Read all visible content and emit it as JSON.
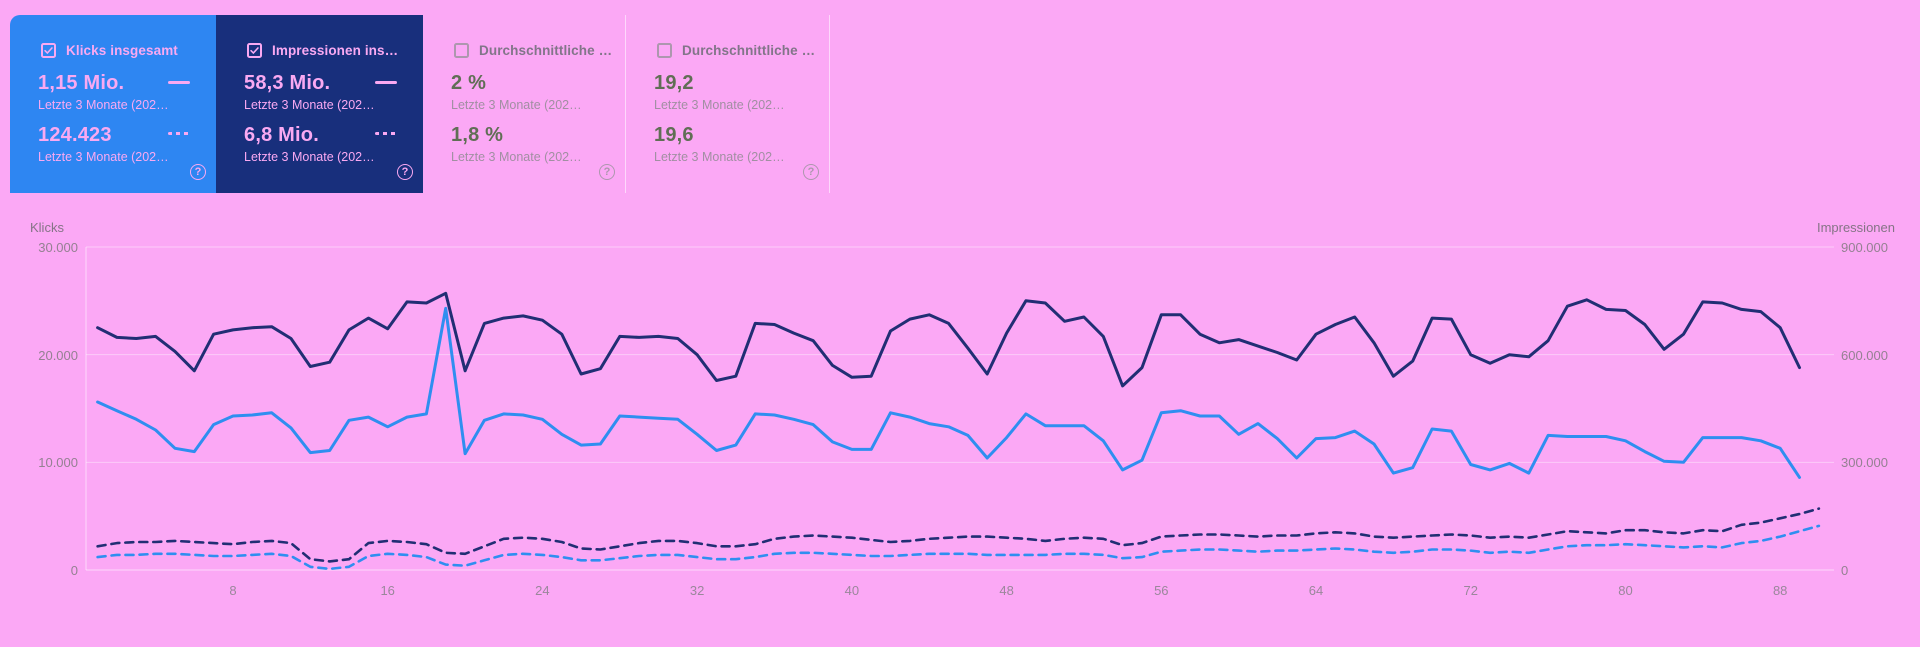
{
  "cards": [
    {
      "title": "Klicks insgesamt",
      "checked": true,
      "value1": "1,15 Mio.",
      "label1": "Letzte 3 Monate (202…",
      "value2": "124.423",
      "label2": "Letzte 3 Monate (202…",
      "help": "?",
      "bg": "#2e86f2",
      "text_color": "#f9a9f2"
    },
    {
      "title": "Impressionen ins…",
      "checked": true,
      "value1": "58,3 Mio.",
      "label1": "Letzte 3 Monate (202…",
      "value2": "6,8 Mio.",
      "label2": "Letzte 3 Monate (202…",
      "help": "?",
      "bg": "#182f7c",
      "text_color": "#f9a9f2"
    },
    {
      "title": "Durchschnittliche …",
      "checked": false,
      "value1": "2 %",
      "label1": "Letzte 3 Monate (202…",
      "value2": "1,8 %",
      "label2": "Letzte 3 Monate (202…",
      "help": "?",
      "bg": "transparent",
      "text_color": "#606e55"
    },
    {
      "title": "Durchschnittliche …",
      "checked": false,
      "value1": "19,2",
      "label1": "Letzte 3 Monate (202…",
      "value2": "19,6",
      "label2": "Letzte 3 Monate (202…",
      "help": "?",
      "bg": "transparent",
      "text_color": "#606e55"
    }
  ],
  "colors": {
    "page_background": "#fba8f5",
    "clicks_line": "#2f8ef0",
    "impressions_line": "#212e74",
    "selected_card_blue": "#2e86f2",
    "selected_card_navy": "#182f7c",
    "grid_line": "rgba(255,255,255,0.42)"
  },
  "chart_data": {
    "type": "line",
    "grid": true,
    "left_axis": {
      "label": "Klicks",
      "ticks": [
        "30.000",
        "20.000",
        "10.000",
        "0"
      ],
      "tick_values": [
        30000,
        20000,
        10000,
        0
      ],
      "max": 30000
    },
    "right_axis": {
      "label": "Impressionen",
      "ticks": [
        "900.000",
        "600.000",
        "300.000",
        "0"
      ],
      "tick_values": [
        900000,
        600000,
        300000,
        0
      ],
      "max": 900000
    },
    "x_axis": {
      "ticks": [
        8,
        16,
        24,
        32,
        40,
        48,
        56,
        64,
        72,
        80,
        88
      ],
      "unit": "Tag-Index",
      "days_current": 89,
      "days_previous": 90
    },
    "series": [
      {
        "id": "impressions-previous",
        "name": "Impressionen ins… — Letzte 3 Monate (202…",
        "axis": "right",
        "style": "dashed",
        "color": "#212e74",
        "values": [
          66000,
          75000,
          78000,
          78000,
          81000,
          78000,
          75000,
          72000,
          78000,
          81000,
          75000,
          30000,
          24000,
          30000,
          75000,
          81000,
          78000,
          72000,
          48000,
          45000,
          66000,
          87000,
          90000,
          87000,
          78000,
          60000,
          57000,
          66000,
          75000,
          81000,
          81000,
          75000,
          66000,
          66000,
          72000,
          87000,
          93000,
          96000,
          93000,
          90000,
          84000,
          78000,
          81000,
          87000,
          90000,
          93000,
          93000,
          90000,
          87000,
          81000,
          87000,
          90000,
          87000,
          69000,
          75000,
          93000,
          96000,
          99000,
          99000,
          96000,
          93000,
          96000,
          96000,
          102000,
          105000,
          102000,
          93000,
          90000,
          93000,
          96000,
          99000,
          96000,
          90000,
          93000,
          90000,
          99000,
          108000,
          105000,
          102000,
          111000,
          111000,
          105000,
          102000,
          111000,
          108000,
          126000,
          132000,
          144000,
          156000,
          171000
        ]
      },
      {
        "id": "clicks-previous",
        "name": "Klicks insgesamt — Letzte 3 Monate (202…",
        "axis": "left",
        "style": "dashed",
        "color": "#2f8ef0",
        "values": [
          1200,
          1400,
          1400,
          1500,
          1500,
          1400,
          1300,
          1300,
          1400,
          1500,
          1300,
          300,
          100,
          300,
          1300,
          1500,
          1400,
          1200,
          500,
          400,
          900,
          1400,
          1500,
          1400,
          1200,
          900,
          900,
          1100,
          1300,
          1400,
          1400,
          1200,
          1000,
          1000,
          1200,
          1500,
          1600,
          1600,
          1500,
          1400,
          1300,
          1300,
          1400,
          1500,
          1500,
          1500,
          1400,
          1400,
          1400,
          1400,
          1500,
          1500,
          1400,
          1100,
          1200,
          1700,
          1800,
          1900,
          1900,
          1800,
          1700,
          1800,
          1800,
          1900,
          2000,
          1900,
          1700,
          1600,
          1700,
          1900,
          1900,
          1800,
          1600,
          1700,
          1600,
          1900,
          2200,
          2300,
          2300,
          2400,
          2300,
          2200,
          2100,
          2200,
          2100,
          2500,
          2700,
          3100,
          3600,
          4100
        ]
      },
      {
        "id": "impressions-current",
        "name": "Impressionen ins… — Letzte 3 Monate (202…",
        "axis": "right",
        "style": "solid",
        "color": "#212e74",
        "values": [
          675000,
          648000,
          645000,
          651000,
          609000,
          555000,
          657000,
          669000,
          675000,
          678000,
          645000,
          567000,
          579000,
          669000,
          702000,
          672000,
          747000,
          744000,
          771000,
          555000,
          687000,
          702000,
          708000,
          696000,
          657000,
          546000,
          561000,
          651000,
          648000,
          651000,
          645000,
          600000,
          528000,
          540000,
          687000,
          684000,
          660000,
          639000,
          570000,
          537000,
          540000,
          666000,
          699000,
          711000,
          687000,
          618000,
          546000,
          660000,
          750000,
          744000,
          693000,
          705000,
          651000,
          513000,
          564000,
          711000,
          711000,
          657000,
          633000,
          642000,
          624000,
          606000,
          585000,
          657000,
          684000,
          705000,
          633000,
          540000,
          582000,
          702000,
          699000,
          600000,
          576000,
          600000,
          594000,
          639000,
          735000,
          753000,
          726000,
          723000,
          684000,
          615000,
          657000,
          747000,
          744000,
          726000,
          720000,
          675000,
          564000
        ]
      },
      {
        "id": "clicks-current",
        "name": "Klicks insgesamt — Letzte 3 Monate (202…",
        "axis": "left",
        "style": "solid",
        "color": "#2f8ef0",
        "values": [
          15600,
          14800,
          14000,
          13000,
          11300,
          11000,
          13500,
          14300,
          14400,
          14600,
          13200,
          10900,
          11100,
          13900,
          14200,
          13300,
          14200,
          14500,
          24300,
          10800,
          13900,
          14500,
          14400,
          14000,
          12600,
          11600,
          11700,
          14300,
          14200,
          14100,
          14000,
          12600,
          11100,
          11600,
          14500,
          14400,
          14000,
          13500,
          11900,
          11200,
          11200,
          14600,
          14200,
          13600,
          13300,
          12500,
          10400,
          12300,
          14500,
          13400,
          13400,
          13400,
          12000,
          9300,
          10200,
          14600,
          14800,
          14300,
          14300,
          12600,
          13600,
          12200,
          10400,
          12200,
          12300,
          12900,
          11700,
          9000,
          9500,
          13100,
          12900,
          9800,
          9300,
          9900,
          9000,
          12500,
          12400,
          12400,
          12400,
          12000,
          11000,
          10100,
          10000,
          12300,
          12300,
          12300,
          12000,
          11300,
          8600
        ]
      }
    ]
  }
}
